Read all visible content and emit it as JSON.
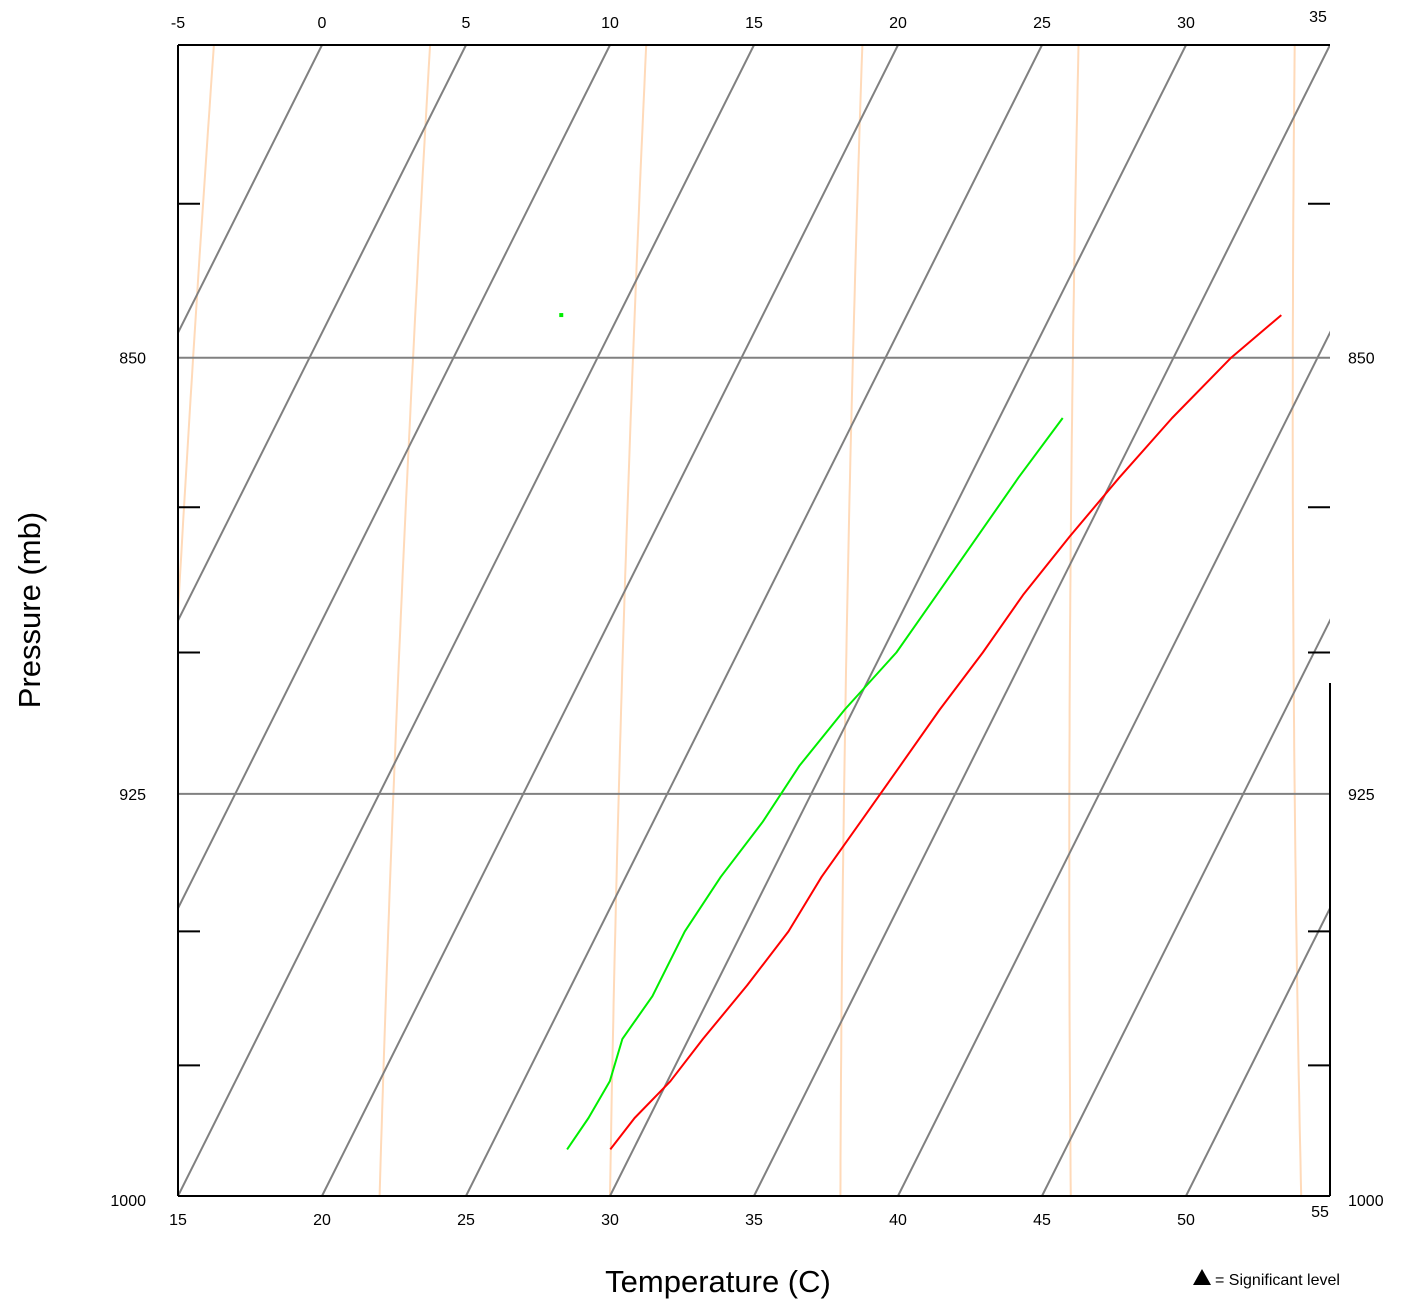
{
  "chart_data": {
    "type": "line",
    "chart_kind": "skew-T log-P diagram",
    "ylabel": "Pressure (mb)",
    "xlabel": "Temperature (C)",
    "y_scale": "log",
    "y_ticks_labeled": [
      "850",
      "925",
      "1000"
    ],
    "y_minor_ticks_mb": [
      825,
      875,
      900,
      950,
      975
    ],
    "y_range_mb": [
      800,
      1000
    ],
    "x_bottom_ticks": [
      "15",
      "20",
      "25",
      "30",
      "35",
      "40",
      "45",
      "50",
      "55"
    ],
    "x_top_ticks": [
      "-5",
      "0",
      "5",
      "10",
      "15",
      "20",
      "25",
      "30",
      "35"
    ],
    "isobars_mb": [
      850,
      925
    ],
    "isotherm_step_c": 5,
    "colors": {
      "isotherm": "#808080",
      "dry_adiabat": "#ffdab9",
      "temperature": "#ff0000",
      "dewpoint": "#00ee00",
      "frame": "#000000"
    },
    "legend": {
      "symbol": "triangle",
      "text": "= Significant level",
      "placement": "bottom-right"
    },
    "series": [
      {
        "role": "temperature",
        "color": "#ff0000",
        "points": [
          {
            "p": 991,
            "t": 29.2
          },
          {
            "p": 985,
            "t": 29.5
          },
          {
            "p": 978,
            "t": 30.1
          },
          {
            "p": 970,
            "t": 30.5
          },
          {
            "p": 960,
            "t": 31.1
          },
          {
            "p": 950,
            "t": 31.6
          },
          {
            "p": 940,
            "t": 31.8
          },
          {
            "p": 930,
            "t": 32.2
          },
          {
            "p": 920,
            "t": 32.6
          },
          {
            "p": 910,
            "t": 33.0
          },
          {
            "p": 900,
            "t": 33.5
          },
          {
            "p": 890,
            "t": 33.9
          },
          {
            "p": 880,
            "t": 34.5
          },
          {
            "p": 870,
            "t": 35.2
          },
          {
            "p": 860,
            "t": 36.0
          },
          {
            "p": 850,
            "t": 37.0
          },
          {
            "p": 843,
            "t": 38.0
          }
        ]
      },
      {
        "role": "dewpoint",
        "color": "#00ee00",
        "points": [
          {
            "p": 991,
            "t": 27.7
          },
          {
            "p": 985,
            "t": 27.9
          },
          {
            "p": 978,
            "t": 28.0
          },
          {
            "p": 970,
            "t": 27.7
          },
          {
            "p": 962,
            "t": 28.0
          },
          {
            "p": 950,
            "t": 28.0
          },
          {
            "p": 940,
            "t": 28.3
          },
          {
            "p": 930,
            "t": 28.8
          },
          {
            "p": 920,
            "t": 29.1
          },
          {
            "p": 910,
            "t": 29.7
          },
          {
            "p": 900,
            "t": 30.5
          },
          {
            "p": 890,
            "t": 30.9
          },
          {
            "p": 880,
            "t": 31.3
          },
          {
            "p": 870,
            "t": 31.7
          },
          {
            "p": 860,
            "t": 32.2
          }
        ]
      }
    ],
    "isolated_points": [
      {
        "role": "dewpoint",
        "p": 843,
        "t": 13.0
      }
    ]
  }
}
